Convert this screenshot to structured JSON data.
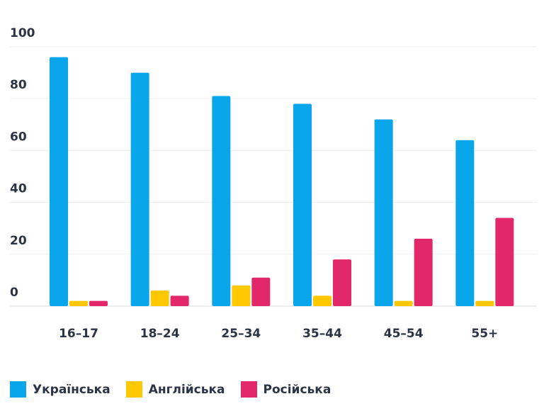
{
  "chart_data": {
    "type": "bar",
    "categories": [
      "16–17",
      "18–24",
      "25–34",
      "35–44",
      "45–54",
      "55+"
    ],
    "series": [
      {
        "name": "Українська",
        "color": "#0aa6ec",
        "values": [
          96,
          90,
          81,
          78,
          72,
          64
        ]
      },
      {
        "name": "Англійська",
        "color": "#ffc800",
        "values": [
          2,
          6,
          8,
          4,
          2,
          2
        ]
      },
      {
        "name": "Російська",
        "color": "#e3286a",
        "values": [
          2,
          4,
          11,
          18,
          26,
          34
        ]
      }
    ],
    "y_ticks": [
      "0",
      "20",
      "40",
      "60",
      "80",
      "100"
    ],
    "ylim": [
      0,
      100
    ],
    "grid": true,
    "legend_position": "bottom-left"
  }
}
